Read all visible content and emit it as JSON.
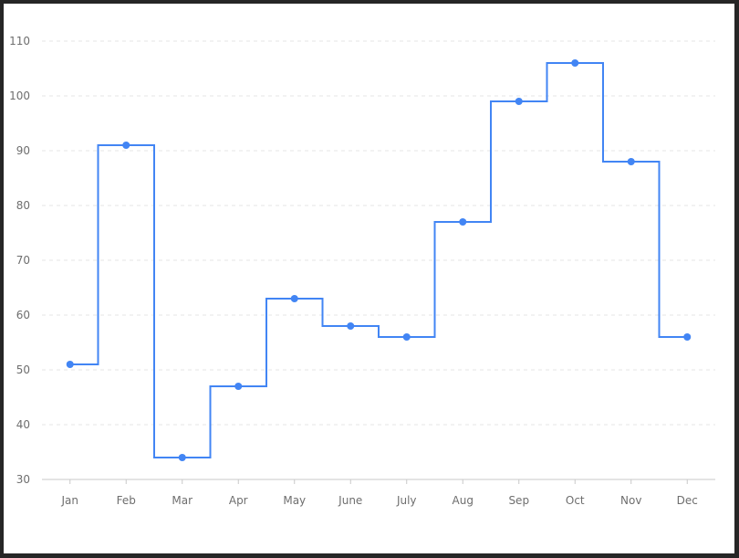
{
  "chart_data": {
    "type": "line",
    "step": "middle",
    "categories": [
      "Jan",
      "Feb",
      "Mar",
      "Apr",
      "May",
      "June",
      "July",
      "Aug",
      "Sep",
      "Oct",
      "Nov",
      "Dec"
    ],
    "series": [
      {
        "values": [
          51,
          91,
          34,
          47,
          63,
          58,
          56,
          77,
          99,
          106,
          88,
          56
        ],
        "color": "#4285f4"
      }
    ],
    "ylim": [
      30,
      110
    ],
    "yticks": [
      30,
      40,
      50,
      60,
      70,
      80,
      90,
      100,
      110
    ],
    "grid": true,
    "legend": "none"
  }
}
